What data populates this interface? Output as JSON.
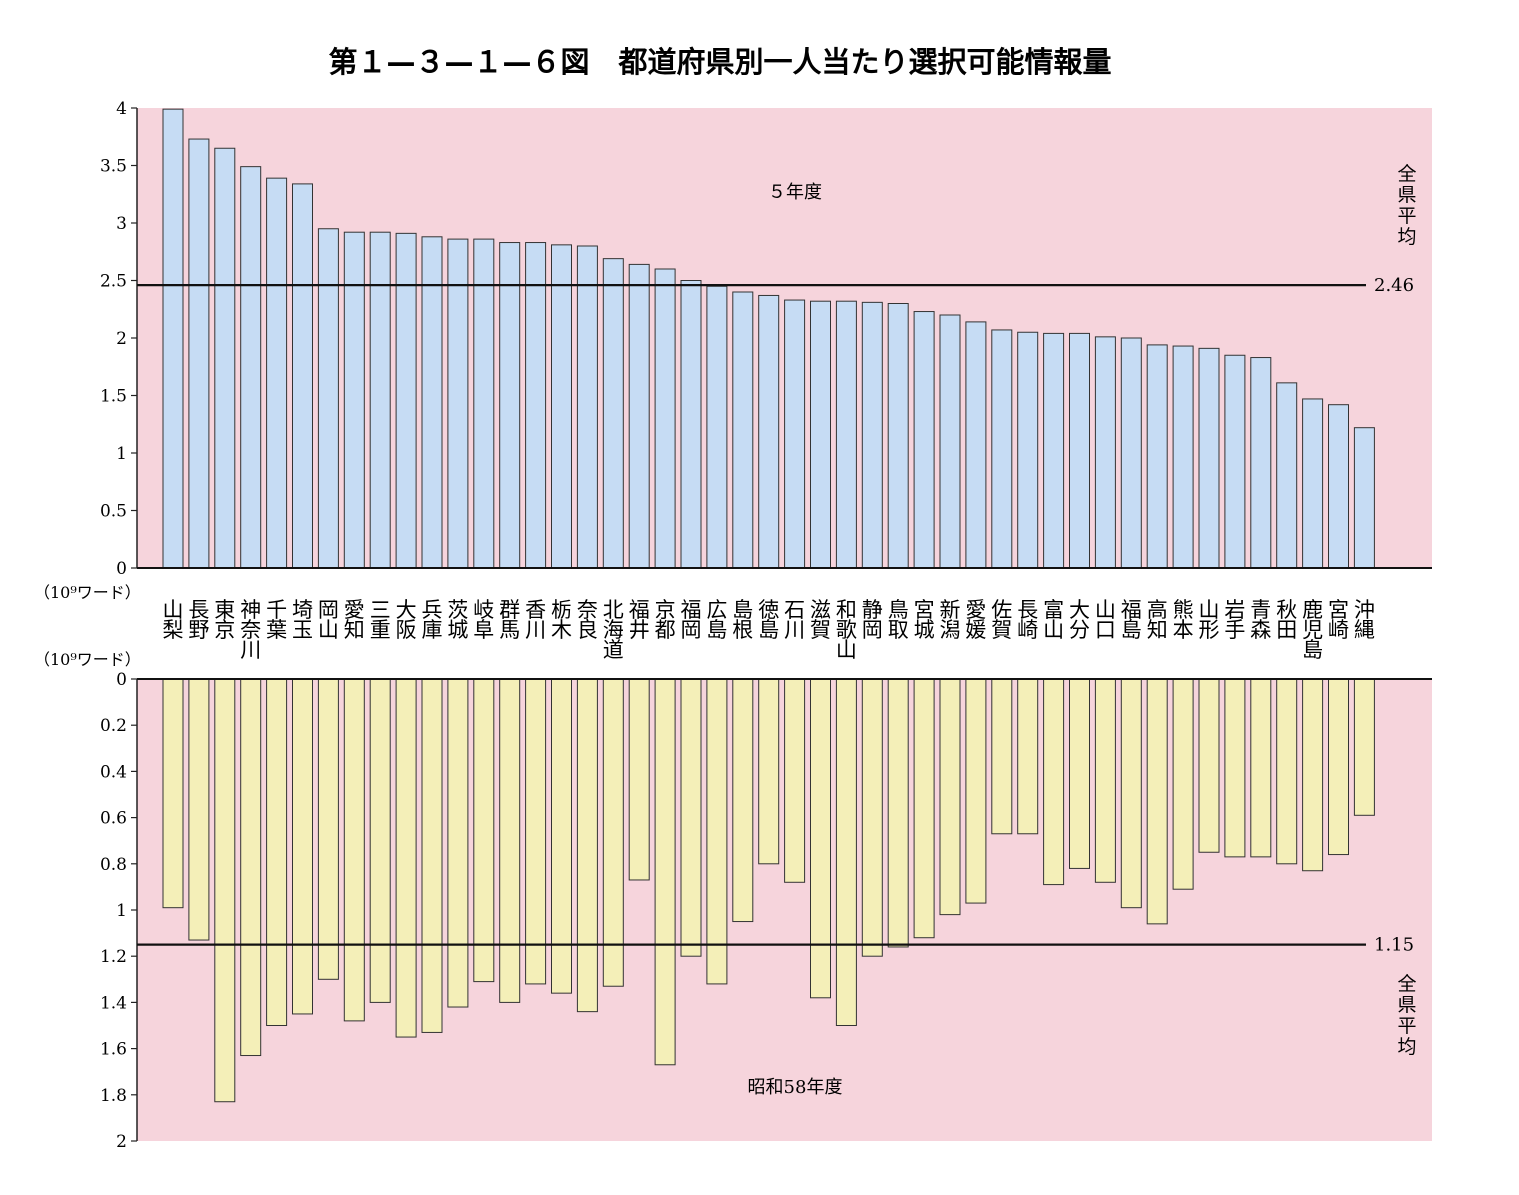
{
  "title": "第１—３—１—６図　都道府県別一人当たり選択可能情報量",
  "unit_label": "（10⁹ワード）",
  "chart_data": [
    {
      "type": "bar",
      "panel": "top",
      "label": "５年度",
      "categories": [
        "山梨",
        "長野",
        "東京",
        "神奈川",
        "千葉",
        "埼玉",
        "岡山",
        "愛知",
        "三重",
        "大阪",
        "兵庫",
        "茨城",
        "岐阜",
        "群馬",
        "香川",
        "栃木",
        "奈良",
        "北海道",
        "福井",
        "京都",
        "福岡",
        "広島",
        "島根",
        "徳島",
        "石川",
        "滋賀",
        "和歌山",
        "静岡",
        "鳥取",
        "宮城",
        "新潟",
        "愛媛",
        "佐賀",
        "長崎",
        "富山",
        "大分",
        "山口",
        "福島",
        "高知",
        "熊本",
        "山形",
        "岩手",
        "青森",
        "秋田",
        "鹿児島",
        "宮崎",
        "沖縄"
      ],
      "values": [
        3.99,
        3.73,
        3.65,
        3.49,
        3.39,
        3.34,
        2.95,
        2.92,
        2.92,
        2.91,
        2.88,
        2.86,
        2.86,
        2.83,
        2.83,
        2.81,
        2.8,
        2.69,
        2.64,
        2.6,
        2.5,
        2.45,
        2.4,
        2.37,
        2.33,
        2.32,
        2.32,
        2.31,
        2.3,
        2.23,
        2.2,
        2.14,
        2.07,
        2.05,
        2.04,
        2.04,
        2.01,
        2.0,
        1.94,
        1.93,
        1.91,
        1.85,
        1.83,
        1.61,
        1.47,
        1.42,
        1.22
      ],
      "ylim": [
        0,
        4
      ],
      "yticks": [
        "0",
        "0.5",
        "1",
        "1.5",
        "2",
        "2.5",
        "3",
        "3.5",
        "4"
      ],
      "average": 2.46,
      "average_label": "2.46",
      "average_text": "全県平均",
      "color": "#c6dcf4"
    },
    {
      "type": "bar",
      "panel": "bottom",
      "label": "昭和58年度",
      "categories": [
        "山梨",
        "長野",
        "東京",
        "神奈川",
        "千葉",
        "埼玉",
        "岡山",
        "愛知",
        "三重",
        "大阪",
        "兵庫",
        "茨城",
        "岐阜",
        "群馬",
        "香川",
        "栃木",
        "奈良",
        "北海道",
        "福井",
        "京都",
        "福岡",
        "広島",
        "島根",
        "徳島",
        "石川",
        "滋賀",
        "和歌山",
        "静岡",
        "鳥取",
        "宮城",
        "新潟",
        "愛媛",
        "佐賀",
        "長崎",
        "富山",
        "大分",
        "山口",
        "福島",
        "高知",
        "熊本",
        "山形",
        "岩手",
        "青森",
        "秋田",
        "鹿児島",
        "宮崎",
        "沖縄"
      ],
      "values": [
        0.99,
        1.13,
        1.83,
        1.63,
        1.5,
        1.45,
        1.3,
        1.48,
        1.4,
        1.55,
        1.53,
        1.42,
        1.31,
        1.4,
        1.32,
        1.36,
        1.44,
        1.33,
        0.87,
        1.67,
        1.2,
        1.32,
        1.05,
        0.8,
        0.88,
        1.38,
        1.5,
        1.2,
        1.16,
        1.12,
        1.02,
        0.97,
        0.67,
        0.67,
        0.89,
        0.82,
        0.88,
        0.99,
        1.06,
        0.91,
        0.75,
        0.77,
        0.77,
        0.8,
        0.83,
        0.76,
        0.59
      ],
      "ylim": [
        0,
        2
      ],
      "yticks": [
        "0",
        "0.2",
        "0.4",
        "0.6",
        "0.8",
        "1",
        "1.2",
        "1.4",
        "1.6",
        "1.8",
        "2"
      ],
      "average": 1.15,
      "average_label": "1.15",
      "average_text": "全県平均",
      "color": "#f4efb8"
    }
  ],
  "colors": {
    "plot_bg": "#f6d4dc",
    "bar_stroke": "#333333"
  }
}
